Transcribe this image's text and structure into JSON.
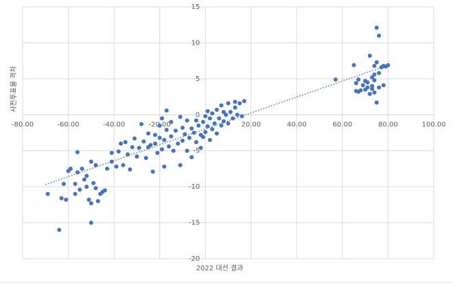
{
  "chart_data": {
    "type": "scatter",
    "x_label": "2022 대선 결과",
    "y_label": "사전투표율 격차",
    "color": "#4472c4",
    "grid": true,
    "xlim": [
      -80,
      100
    ],
    "ylim": [
      -20,
      15
    ],
    "xticks": [
      {
        "value": -80,
        "label": "-80.00"
      },
      {
        "value": -60,
        "label": "-60.00"
      },
      {
        "value": -40,
        "label": "-40.00"
      },
      {
        "value": -20,
        "label": "-20.00"
      },
      {
        "value": 20,
        "label": "20.00"
      },
      {
        "value": 40,
        "label": "40.00"
      },
      {
        "value": 60,
        "label": "60.00"
      },
      {
        "value": 80,
        "label": "80.00"
      },
      {
        "value": 100,
        "label": "100.00"
      }
    ],
    "yticks": [
      -20,
      -15,
      -10,
      -5,
      0,
      5,
      10,
      15
    ],
    "x": [
      -69,
      -64,
      -63,
      -62,
      -61,
      -60,
      -59,
      -56,
      -57,
      -57,
      -56,
      -55,
      -54,
      -53,
      -52,
      -52,
      -51,
      -50,
      -50,
      -50,
      -49,
      -48,
      -48,
      -47,
      -46,
      -45,
      -44,
      -43,
      -41,
      -41,
      -39,
      -38,
      -37,
      -36,
      -35,
      -34,
      -33,
      -32,
      -31,
      -30,
      -29,
      -28,
      -27,
      -26,
      -25,
      -25,
      -24,
      -23,
      -22,
      -22,
      -21,
      -20,
      -20,
      -19,
      -19,
      -18,
      -18,
      -17,
      -17,
      -16,
      -15,
      -15,
      -14,
      -13,
      -12,
      -11,
      -11,
      -10,
      -10,
      -9,
      -8,
      -8,
      -7,
      -6,
      -6,
      -5,
      -4,
      -4,
      -3,
      -2,
      -2,
      -1,
      -1,
      0,
      0,
      1,
      1,
      2,
      2,
      3,
      3,
      4,
      5,
      5,
      6,
      7,
      7,
      8,
      8,
      9,
      10,
      10,
      11,
      12,
      13,
      13,
      14,
      15,
      16,
      17,
      57,
      65,
      66,
      66,
      67,
      67,
      68,
      69,
      70,
      71,
      71,
      72,
      72,
      73,
      73,
      73,
      74,
      74,
      74,
      75,
      75,
      75,
      76,
      76,
      76,
      77,
      78,
      78,
      79,
      80,
      74,
      70
    ],
    "y": [
      -11,
      -16,
      -11.6,
      -9.6,
      -11.8,
      -7.8,
      -7.5,
      -5.2,
      -9.6,
      -11,
      -8,
      -10.4,
      -7.5,
      -9,
      -8.5,
      -10,
      -11.8,
      -15,
      -12.3,
      -6.5,
      -9.5,
      -10.2,
      -7,
      -12,
      -11,
      -10.7,
      -10.5,
      -7.5,
      -5.3,
      -6.5,
      -7.2,
      -5.1,
      -4,
      -7,
      -3.8,
      -5.5,
      -7.6,
      -4.5,
      -3.3,
      -5.8,
      -4.6,
      -1.3,
      -3.7,
      -6,
      -4.5,
      -2.6,
      -4.2,
      -7.9,
      -4,
      -2.8,
      -5.3,
      -1.5,
      -3.2,
      -4.8,
      -0.5,
      -7.2,
      -3.5,
      0.6,
      -2.1,
      -4.4,
      -3,
      -1,
      -5,
      -2.2,
      -4,
      -0.3,
      -7,
      -3.6,
      -1.8,
      -2.7,
      -5,
      -0.8,
      -3.2,
      -1.9,
      -5.9,
      -2.5,
      -3.8,
      -0.8,
      -1.5,
      -2.8,
      -4.6,
      -1,
      -3.1,
      -0.2,
      -2.4,
      0.5,
      -1.6,
      -3.5,
      -0.5,
      -2,
      0.2,
      -1.2,
      -2.6,
      0.7,
      -0.5,
      -1.5,
      1.3,
      0.4,
      -0.9,
      0,
      -1.2,
      1.6,
      0.4,
      -0.5,
      1,
      1.8,
      0,
      1.6,
      -0.2,
      1.9,
      4.9,
      6.9,
      4.4,
      3.3,
      4.9,
      3.2,
      3.4,
      4.1,
      4.7,
      3.8,
      4.5,
      8.2,
      2.9,
      5.2,
      4,
      3.6,
      4.8,
      6.8,
      3.1,
      12.1,
      7.3,
      1.7,
      11,
      3.8,
      5.8,
      6.6,
      4.1,
      6.8,
      6.7,
      6.9,
      5.6,
      3.5
    ],
    "trendline": {
      "x": [
        -70,
        80
      ],
      "y": [
        -9.7,
        6.9
      ]
    }
  }
}
